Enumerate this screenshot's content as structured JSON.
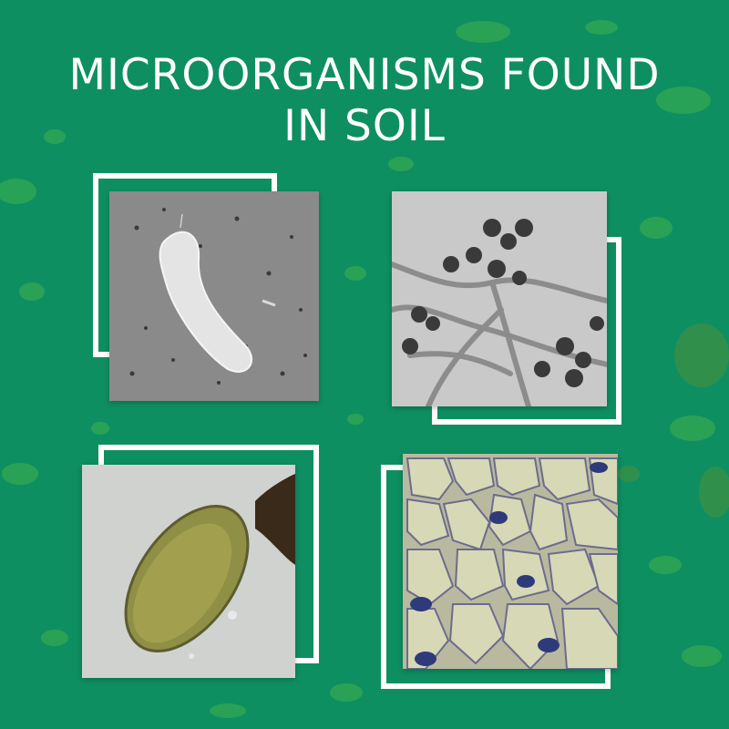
{
  "title": {
    "line1": "MICROORGANISMS FOUND",
    "line2": "IN SOIL"
  },
  "colors": {
    "background": "#0e8f62",
    "frame": "#ffffff",
    "title_text": "#ffffff",
    "blotch_light": "#3fb34d",
    "blotch_dark": "#4f8f3a"
  },
  "images": [
    {
      "subject": "bacterium"
    },
    {
      "subject": "fungus"
    },
    {
      "subject": "protozoan"
    },
    {
      "subject": "plant-cells"
    }
  ]
}
